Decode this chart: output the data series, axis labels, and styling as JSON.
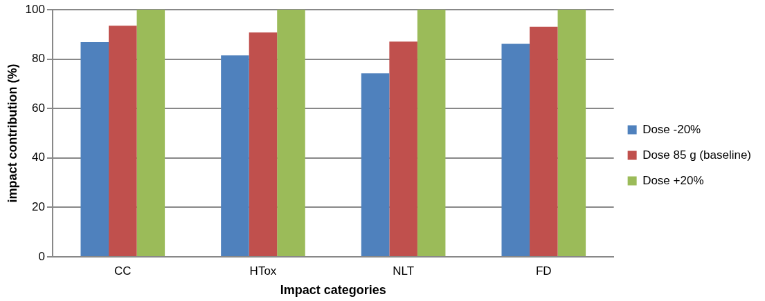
{
  "chart_data": {
    "type": "bar",
    "xlabel": "Impact categories",
    "ylabel": "impact contribution (%)",
    "categories": [
      "CC",
      "HTox",
      "NLT",
      "FD"
    ],
    "series": [
      {
        "name": "Dose -20%",
        "color": "#4f81bd",
        "values": [
          86.9,
          81.5,
          74.2,
          86.2
        ]
      },
      {
        "name": "Dose 85 g (baseline)",
        "color": "#c0504d",
        "values": [
          93.5,
          90.8,
          87.1,
          93.1
        ]
      },
      {
        "name": "Dose +20%",
        "color": "#9bbb59",
        "values": [
          100,
          100,
          100,
          100
        ]
      }
    ],
    "ylim": [
      0,
      100
    ],
    "yticks": [
      0,
      20,
      40,
      60,
      80,
      100
    ],
    "grid": "y",
    "legend": "right"
  }
}
